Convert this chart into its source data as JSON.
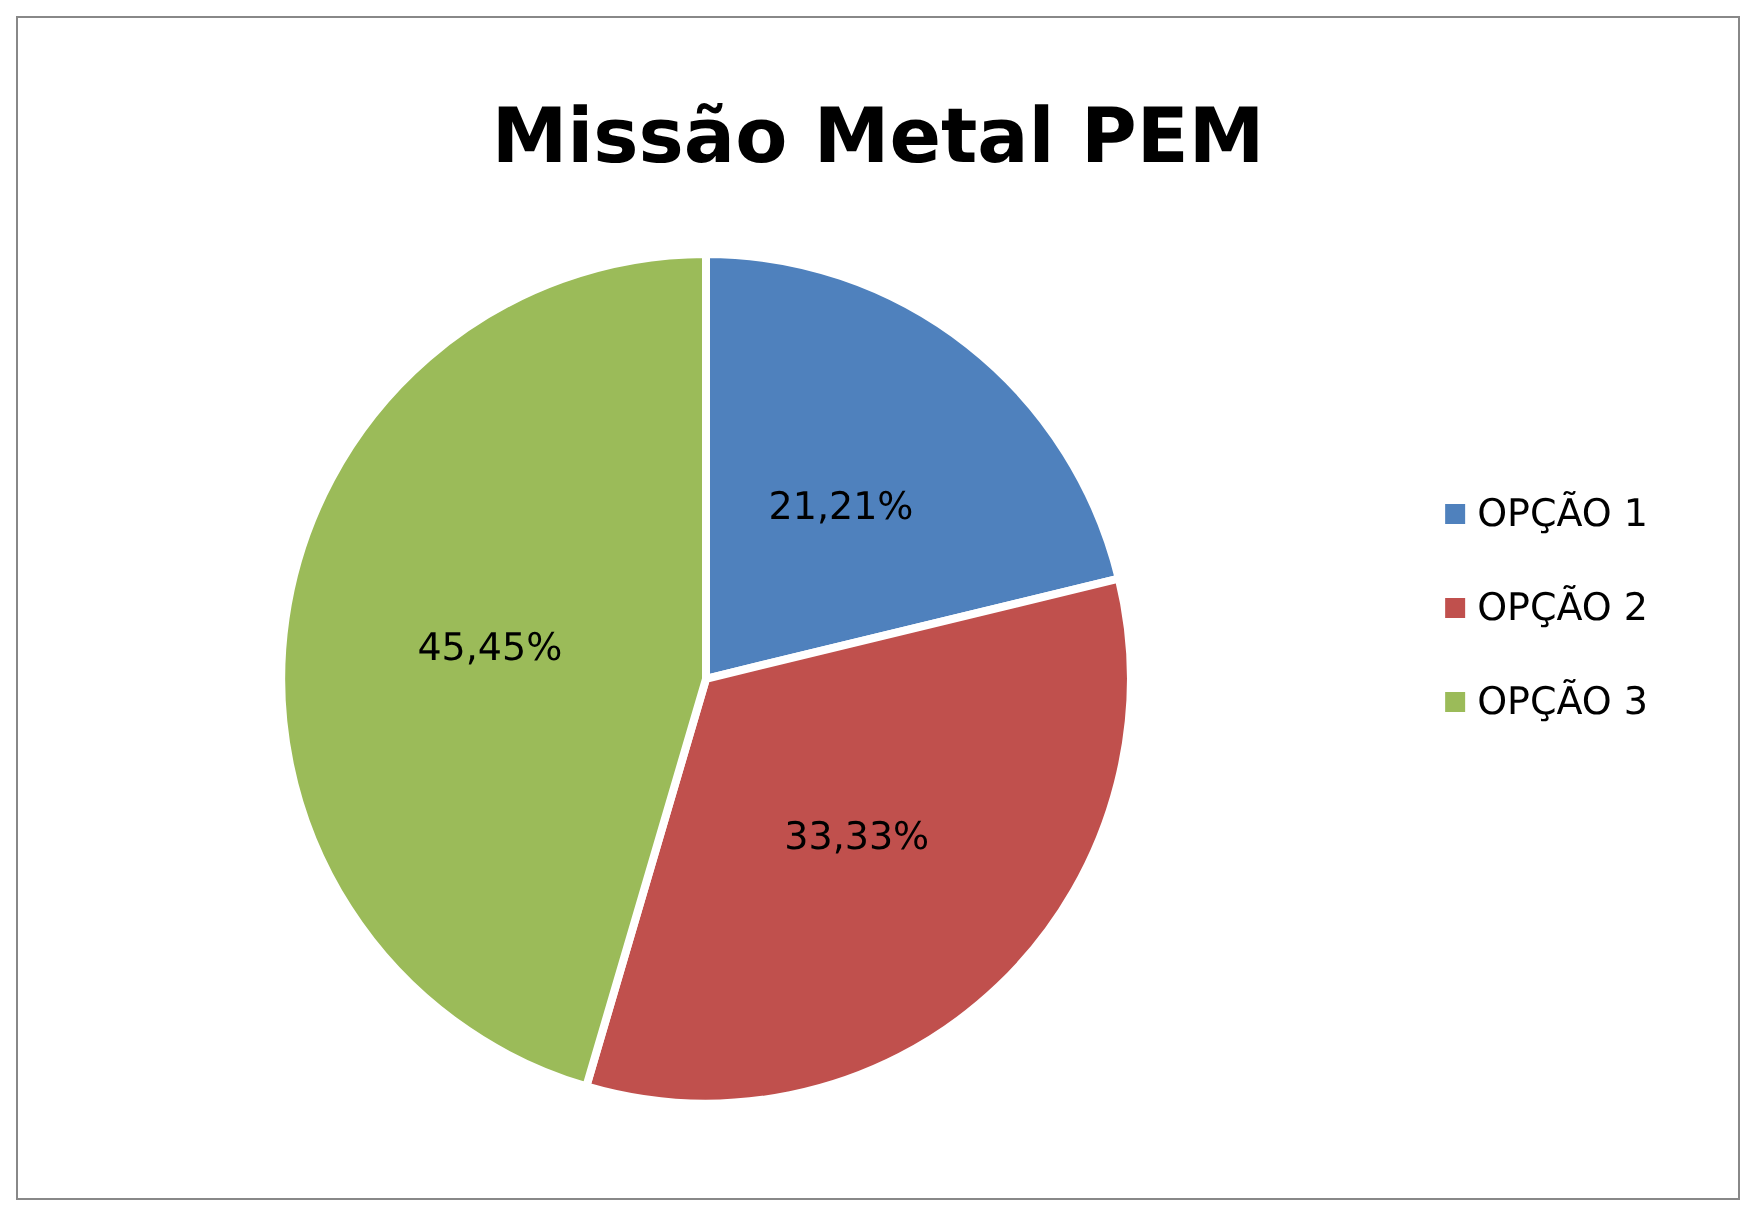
{
  "chart_data": {
    "type": "pie",
    "title": "Missão Metal PEM",
    "categories": [
      "OPÇÃO 1",
      "OPÇÃO 2",
      "OPÇÃO 3"
    ],
    "values": [
      21.21,
      33.33,
      45.45
    ],
    "value_labels": [
      "21,21%",
      "33,33%",
      "45,45%"
    ],
    "colors": [
      "#4f81bd",
      "#c0504d",
      "#9bbb59"
    ],
    "legend": "right"
  }
}
